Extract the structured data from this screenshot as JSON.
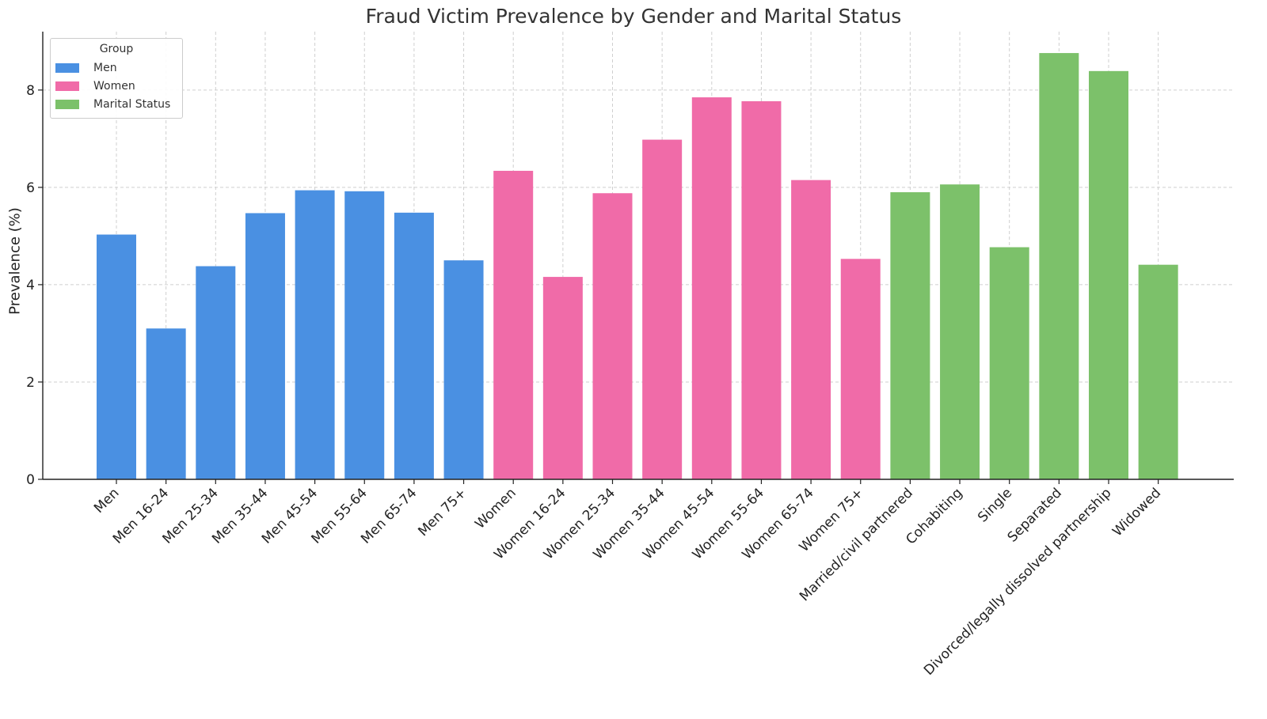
{
  "chart_data": {
    "type": "bar",
    "title": "Fraud Victim Prevalence by Gender and Marital Status",
    "xlabel": "",
    "ylabel": "Prevalence (%)",
    "ylim": [
      0,
      9.2
    ],
    "yticks": [
      0,
      2,
      4,
      6,
      8
    ],
    "grid": true,
    "legend": {
      "title": "Group",
      "placement": "top-left",
      "entries": [
        {
          "name": "Men",
          "color": "#4A90E2"
        },
        {
          "name": "Women",
          "color": "#F06BA8"
        },
        {
          "name": "Marital Status",
          "color": "#7CC16A"
        }
      ]
    },
    "categories": [
      "Men",
      "Men 16-24",
      "Men 25-34",
      "Men 35-44",
      "Men 45-54",
      "Men 55-64",
      "Men 65-74",
      "Men 75+",
      "Women",
      "Women 16-24",
      "Women 25-34",
      "Women 35-44",
      "Women 45-54",
      "Women 55-64",
      "Women 65-74",
      "Women 75+",
      "Married/civil partnered",
      "Cohabiting",
      "Single",
      "Separated",
      "Divorced/legally dissolved partnership",
      "Widowed"
    ],
    "values": [
      5.03,
      3.1,
      4.38,
      5.47,
      5.94,
      5.92,
      5.48,
      4.5,
      6.34,
      4.16,
      5.88,
      6.98,
      7.85,
      7.77,
      6.15,
      4.53,
      5.9,
      6.06,
      4.77,
      8.76,
      8.39,
      4.41
    ],
    "groups": [
      "Men",
      "Men",
      "Men",
      "Men",
      "Men",
      "Men",
      "Men",
      "Men",
      "Women",
      "Women",
      "Women",
      "Women",
      "Women",
      "Women",
      "Women",
      "Women",
      "Marital Status",
      "Marital Status",
      "Marital Status",
      "Marital Status",
      "Marital Status",
      "Marital Status"
    ]
  }
}
